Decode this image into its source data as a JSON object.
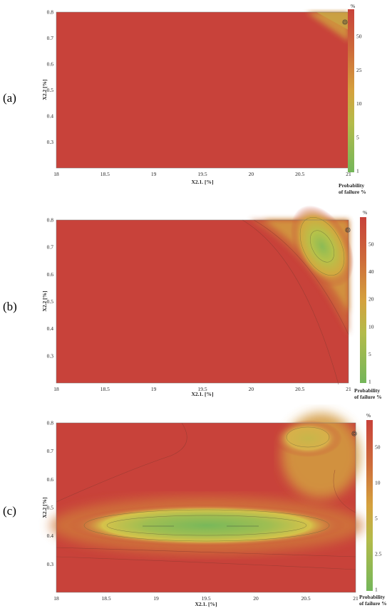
{
  "chart_data": [
    {
      "type": "heatmap",
      "panel_label": "(a)",
      "xlabel": "X2.1. [%]",
      "ylabel": "X2.2 [%]",
      "xlim": [
        18,
        21
      ],
      "ylim": [
        0.2,
        0.8
      ],
      "x_ticks": [
        "18",
        "18.5",
        "19",
        "19.5",
        "20",
        "20.5",
        "21"
      ],
      "y_ticks": [
        "0.3",
        "0.4",
        "0.5",
        "0.6",
        "0.7",
        "0.8"
      ],
      "colorbar": {
        "unit": "%",
        "title_lines": [
          "Probability",
          "of failure %"
        ],
        "ticks": [
          "1",
          "5",
          "10",
          "25",
          "50"
        ]
      },
      "colors": {
        "high": "#c8423a",
        "mid": "#d49a3e",
        "low": "#7fb75a"
      }
    },
    {
      "type": "heatmap",
      "panel_label": "(b)",
      "xlabel": "X2.1. [%]",
      "ylabel": "X2.2 [%]",
      "xlim": [
        18,
        21
      ],
      "ylim": [
        0.2,
        0.8
      ],
      "x_ticks": [
        "18",
        "18.5",
        "19",
        "19.5",
        "20",
        "20.5",
        "21"
      ],
      "y_ticks": [
        "0.3",
        "0.4",
        "0.5",
        "0.6",
        "0.7",
        "0.8"
      ],
      "colorbar": {
        "unit": "%",
        "title_lines": [
          "Probability",
          "of failure %"
        ],
        "ticks": [
          "1",
          "5",
          "10",
          "20",
          "40",
          "50"
        ]
      },
      "colors": {
        "high": "#c8423a",
        "mid": "#d49a3e",
        "low": "#7fb75a"
      }
    },
    {
      "type": "heatmap",
      "panel_label": "(c)",
      "xlabel": "X2.1. [%]",
      "ylabel": "X2.2 [%]",
      "xlim": [
        18,
        21
      ],
      "ylim": [
        0.2,
        0.8
      ],
      "x_ticks": [
        "18",
        "18.5",
        "19",
        "19.5",
        "20",
        "20.5",
        "21"
      ],
      "y_ticks": [
        "0.3",
        "0.4",
        "0.5",
        "0.6",
        "0.7",
        "0.8"
      ],
      "colorbar": {
        "unit": "%",
        "title_lines": [
          "Probability",
          "of failure %"
        ],
        "ticks": [
          "1",
          "2.5",
          "5",
          "10",
          "50"
        ]
      },
      "colors": {
        "high": "#c8423a",
        "mid": "#d49a3e",
        "low": "#7fb75a"
      }
    }
  ]
}
